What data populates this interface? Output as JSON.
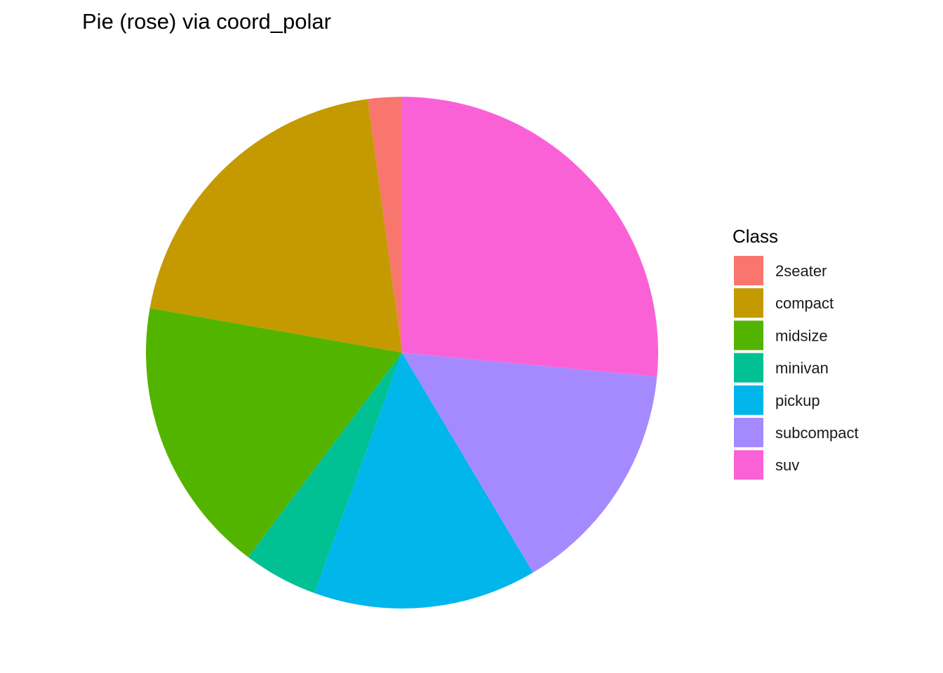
{
  "chart_data": {
    "type": "pie",
    "title": "Pie (rose) via coord_polar",
    "legend": {
      "title": "Class",
      "position": "right"
    },
    "categories": [
      "2seater",
      "compact",
      "midsize",
      "minivan",
      "pickup",
      "subcompact",
      "suv"
    ],
    "values": [
      5,
      47,
      41,
      11,
      33,
      35,
      62
    ],
    "colors": [
      "#F8766D",
      "#C49A00",
      "#53B400",
      "#00C094",
      "#00B6EB",
      "#A58AFF",
      "#FB61D7"
    ],
    "direction": "counterclockwise",
    "start": "top",
    "grid": false
  }
}
